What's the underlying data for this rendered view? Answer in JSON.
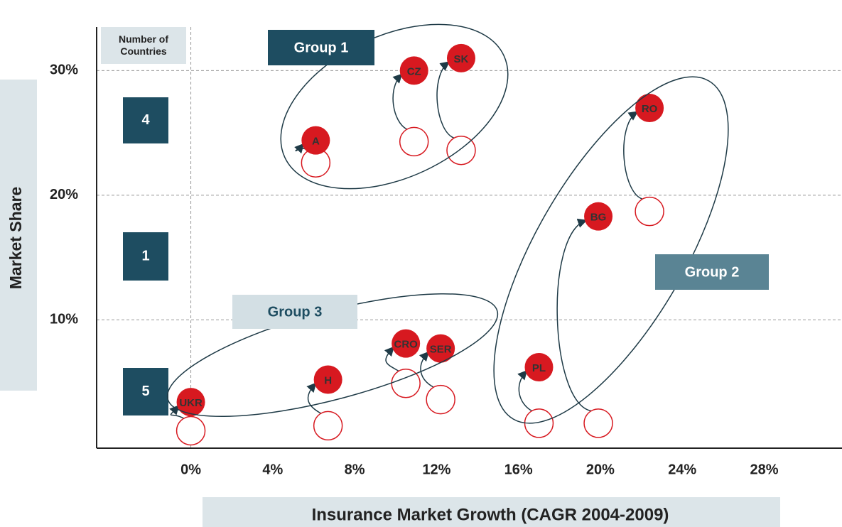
{
  "chart_data": {
    "type": "scatter",
    "x_label": "Insurance Market Growth (CAGR 2004-2009)",
    "y_label": "Market Share",
    "count_header": "Number of Countries",
    "counts": [
      4,
      1,
      5
    ],
    "groups": [
      "Group 1",
      "Group 2",
      "Group 3"
    ],
    "xlim": [
      -4.6,
      31.8
    ],
    "ylim": [
      -0.3,
      33.5
    ],
    "xticks": [
      {
        "value": 0,
        "label": "0%"
      },
      {
        "value": 4,
        "label": "4%"
      },
      {
        "value": 8,
        "label": "8%"
      },
      {
        "value": 12,
        "label": "12%"
      },
      {
        "value": 16,
        "label": "16%"
      },
      {
        "value": 20,
        "label": "20%"
      },
      {
        "value": 24,
        "label": "24%"
      },
      {
        "value": 28,
        "label": "28%"
      }
    ],
    "yticks": [
      {
        "value": 10,
        "label": "10%"
      },
      {
        "value": 20,
        "label": "20%"
      },
      {
        "value": 30,
        "label": "30%"
      }
    ],
    "grid": true,
    "reference_x": 0,
    "series": [
      {
        "color": "#ffffff",
        "x": [
          6.1,
          10.9,
          13.2,
          22.4,
          19.9,
          17.0,
          0.0,
          6.7,
          10.5,
          12.2
        ],
        "values": [
          22.6,
          24.3,
          23.6,
          18.7,
          1.7,
          1.7,
          1.1,
          1.5,
          4.9,
          3.6
        ]
      },
      {
        "color": "#d71920",
        "labels": [
          "A",
          "CZ",
          "SK",
          "RO",
          "BG",
          "PL",
          "UKR",
          "H",
          "CRO",
          "SER"
        ],
        "x": [
          6.1,
          10.9,
          13.2,
          22.4,
          19.9,
          17.0,
          0.0,
          6.7,
          10.5,
          12.2
        ],
        "values": [
          24.4,
          30.0,
          31.0,
          27.0,
          18.3,
          6.2,
          3.4,
          5.2,
          8.1,
          7.7
        ]
      }
    ]
  }
}
